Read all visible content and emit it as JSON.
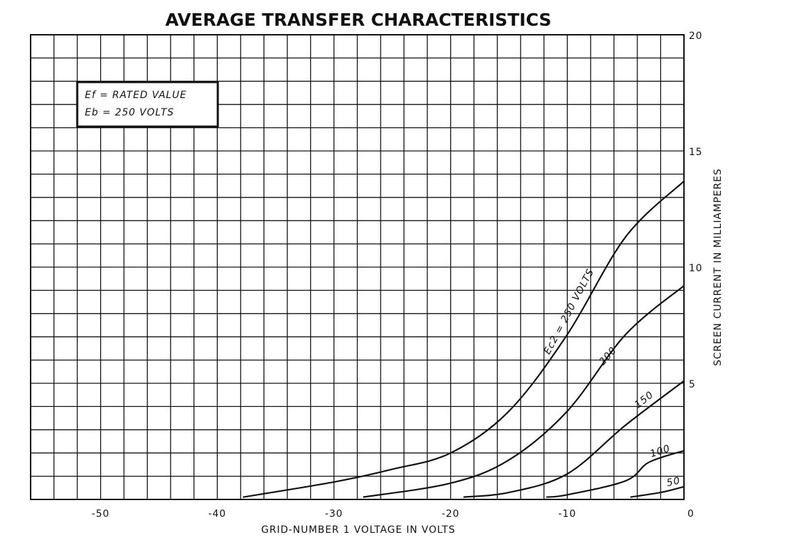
{
  "chart_data": {
    "type": "line",
    "title": "AVERAGE TRANSFER CHARACTERISTICS",
    "x_label": "GRID-NUMBER 1 VOLTAGE IN VOLTS",
    "y_label": "SCREEN CURRENT IN MILLIAMPERES",
    "annotations": [
      "Ef = RATED VALUE",
      "Eb = 250 VOLTS"
    ],
    "xlim": [
      -56,
      0
    ],
    "ylim": [
      0,
      20
    ],
    "xticks": [
      -50,
      -40,
      -30,
      -20,
      -10,
      0
    ],
    "yticks": [
      5,
      10,
      15,
      20
    ],
    "x_minor_ticks": [
      -56,
      -54,
      -52,
      -50,
      -48,
      -46,
      -44,
      -42,
      -40,
      -38,
      -36,
      -34,
      -32,
      -30,
      -28,
      -26,
      -24,
      -22,
      -20,
      -18,
      -16,
      -14,
      -12,
      -10,
      -8,
      -6,
      -4,
      -2,
      0
    ],
    "y_minor_ticks": [
      0,
      1,
      2,
      3,
      4,
      5,
      6,
      7,
      8,
      9,
      10,
      11,
      12,
      13,
      14,
      15,
      16,
      17,
      18,
      19,
      20
    ],
    "grid": true,
    "series": [
      {
        "name": "Ec2 = 250 VOLTS",
        "color": "#111111",
        "x": [
          -37.8,
          -30,
          -25,
          -20,
          -15,
          -10,
          -5,
          0
        ],
        "values": [
          0.1,
          0.75,
          1.3,
          2.0,
          3.8,
          7.1,
          11.3,
          13.7
        ]
      },
      {
        "name": "200",
        "color": "#111111",
        "x": [
          -27.5,
          -20,
          -15,
          -10,
          -5,
          0
        ],
        "values": [
          0.1,
          0.7,
          1.7,
          3.8,
          7.1,
          9.2
        ]
      },
      {
        "name": "150",
        "color": "#111111",
        "x": [
          -18.9,
          -15,
          -10,
          -5,
          0
        ],
        "values": [
          0.1,
          0.3,
          1.1,
          3.2,
          5.1
        ]
      },
      {
        "name": "100",
        "color": "#111111",
        "x": [
          -11.8,
          -10,
          -5,
          -3,
          0
        ],
        "values": [
          0.1,
          0.2,
          0.8,
          1.6,
          2.1
        ]
      },
      {
        "name": "50",
        "color": "#111111",
        "x": [
          -4.6,
          -2,
          0
        ],
        "values": [
          0.1,
          0.3,
          0.55
        ]
      }
    ]
  }
}
